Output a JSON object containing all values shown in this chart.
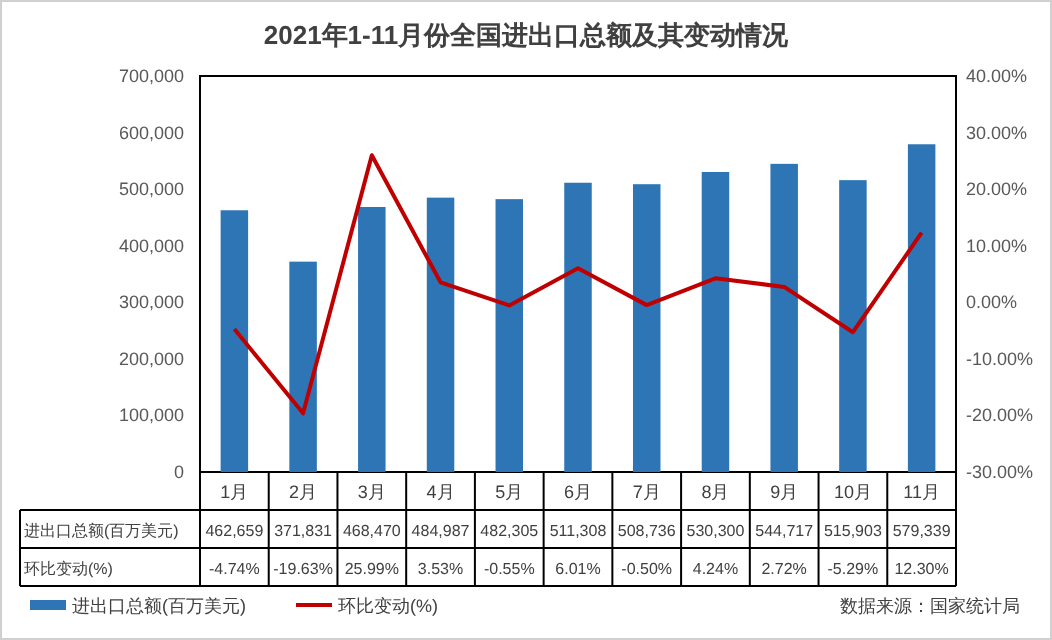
{
  "chart_data": {
    "type": "bar",
    "title": "2021年1-11月份全国进出口总额及其变动情况",
    "categories": [
      "1月",
      "2月",
      "3月",
      "4月",
      "5月",
      "6月",
      "7月",
      "8月",
      "9月",
      "10月",
      "11月"
    ],
    "series": [
      {
        "name": "进出口总额(百万美元)",
        "color": "#2e75b6",
        "values": [
          462659,
          371831,
          468470,
          484987,
          482305,
          511308,
          508736,
          530300,
          544717,
          515903,
          579339
        ],
        "value_labels": [
          "462,659",
          "371,831",
          "468,470",
          "484,987",
          "482,305",
          "511,308",
          "508,736",
          "530,300",
          "544,717",
          "515,903",
          "579,339"
        ]
      },
      {
        "name": "环比变动(%)",
        "type": "line",
        "axis": "y2",
        "color": "#c00000",
        "values": [
          -4.74,
          -19.63,
          25.99,
          3.53,
          -0.55,
          6.01,
          -0.5,
          4.24,
          2.72,
          -5.29,
          12.3
        ],
        "value_labels": [
          "-4.74%",
          "-19.63%",
          "25.99%",
          "3.53%",
          "-0.55%",
          "6.01%",
          "-0.50%",
          "4.24%",
          "2.72%",
          "-5.29%",
          "12.30%"
        ]
      }
    ],
    "ylim": [
      0,
      700000
    ],
    "yticks": [
      {
        "value": 0,
        "label": "0"
      },
      {
        "value": 100000,
        "label": "100,000"
      },
      {
        "value": 200000,
        "label": "200,000"
      },
      {
        "value": 300000,
        "label": "300,000"
      },
      {
        "value": 400000,
        "label": "400,000"
      },
      {
        "value": 500000,
        "label": "500,000"
      },
      {
        "value": 600000,
        "label": "600,000"
      },
      {
        "value": 700000,
        "label": "700,000"
      }
    ],
    "y2lim": [
      -30,
      40
    ],
    "y2ticks": [
      {
        "value": -30,
        "label": "-30.00%"
      },
      {
        "value": -20,
        "label": "-20.00%"
      },
      {
        "value": -10,
        "label": "-10.00%"
      },
      {
        "value": 0,
        "label": "0.00%"
      },
      {
        "value": 10,
        "label": "10.00%"
      },
      {
        "value": 20,
        "label": "20.00%"
      },
      {
        "value": 30,
        "label": "30.00%"
      },
      {
        "value": 40,
        "label": "40.00%"
      }
    ],
    "legend": "bottom",
    "annotations": [
      "数据来源：国家统计局"
    ]
  }
}
